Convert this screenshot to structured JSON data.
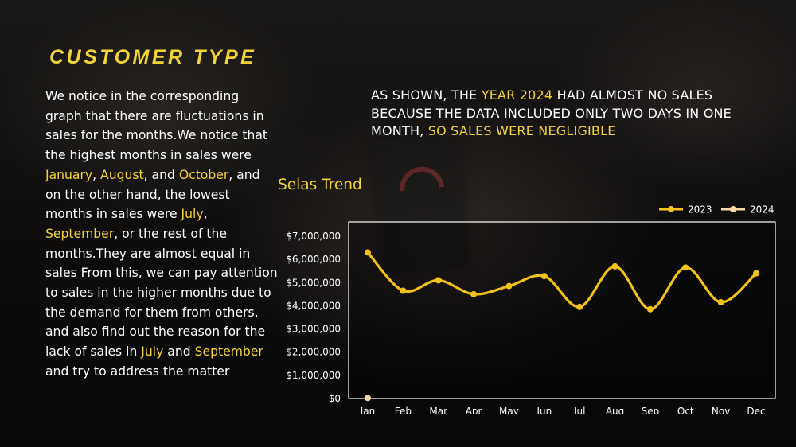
{
  "slide": {
    "title": "CUSTOMER TYPE",
    "body_segments": [
      {
        "text": "We notice in the corresponding graph that there are fluctuations in sales for the months.We notice that the highest months in sales were ",
        "highlight": false
      },
      {
        "text": "January",
        "highlight": true
      },
      {
        "text": ", ",
        "highlight": false
      },
      {
        "text": "August",
        "highlight": true
      },
      {
        "text": ", and ",
        "highlight": false
      },
      {
        "text": "October",
        "highlight": true
      },
      {
        "text": ", and on the other hand, the lowest months in sales were ",
        "highlight": false
      },
      {
        "text": "July",
        "highlight": true
      },
      {
        "text": ", ",
        "highlight": false
      },
      {
        "text": "September",
        "highlight": true
      },
      {
        "text": ", or the rest of the months.They are almost equal in sales From this, we can pay attention to sales in the higher months due to the demand for them from others, and also find out the reason for the lack of sales in ",
        "highlight": false
      },
      {
        "text": "July",
        "highlight": true
      },
      {
        "text": " and ",
        "highlight": false
      },
      {
        "text": "September",
        "highlight": true
      },
      {
        "text": " and try to address the matter",
        "highlight": false
      }
    ],
    "note_segments": [
      {
        "text": "AS SHOWN, THE ",
        "highlight": false
      },
      {
        "text": "YEAR 2024",
        "highlight": true
      },
      {
        "text": " HAD ALMOST NO SALES BECAUSE THE DATA INCLUDED ONLY TWO DAYS IN ONE MONTH, ",
        "highlight": false
      },
      {
        "text": "SO SALES WERE NEGLIGIBLE",
        "highlight": true
      }
    ],
    "chart_title": "Selas Trend"
  },
  "colors": {
    "accent": "#f2d33a",
    "series_2023": "#f2c21a",
    "series_2024": "#f7d9a8",
    "text": "#ffffff"
  },
  "chart_data": {
    "type": "line",
    "title": "Selas Trend",
    "categories": [
      "Jan",
      "Feb",
      "Mar",
      "Apr",
      "May",
      "Jun",
      "Jul",
      "Aug",
      "Sep",
      "Oct",
      "Nov",
      "Dec"
    ],
    "y_tick_labels": [
      "$0",
      "$1,000,000",
      "$2,000,000",
      "$3,000,000",
      "$4,000,000",
      "$5,000,000",
      "$6,000,000",
      "$7,000,000"
    ],
    "y_ticks": [
      0,
      1000000,
      2000000,
      3000000,
      4000000,
      5000000,
      6000000,
      7000000
    ],
    "ylim": [
      0,
      7000000
    ],
    "legend_position": "top-right",
    "smooth": true,
    "series": [
      {
        "name": "2023",
        "values": [
          6300000,
          4650000,
          5100000,
          4500000,
          4850000,
          5280000,
          3950000,
          5700000,
          3850000,
          5650000,
          4150000,
          5400000
        ]
      },
      {
        "name": "2024",
        "values": [
          25000,
          null,
          null,
          null,
          null,
          null,
          null,
          null,
          null,
          null,
          null,
          null
        ]
      }
    ]
  }
}
